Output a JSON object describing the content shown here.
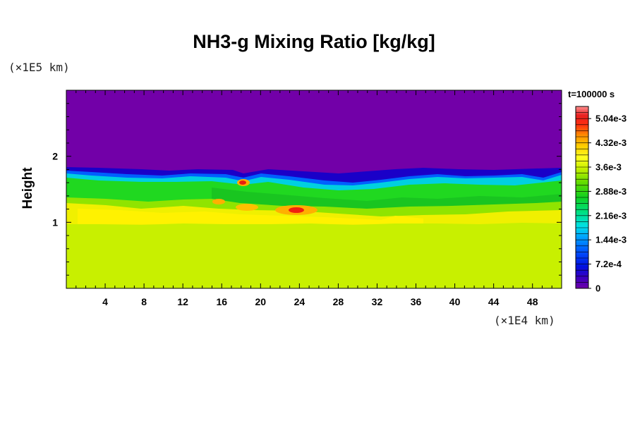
{
  "chart_data": {
    "type": "heatmap",
    "title": "NH3-g Mixing Ratio [kg/kg]",
    "ylabel": "Height",
    "y_unit_label": "(×1E5 km)",
    "x_unit_label": "(×1E4 km)",
    "time_label": "t=100000 s",
    "xlim": [
      0,
      51
    ],
    "ylim": [
      0,
      3
    ],
    "x_ticks": [
      "4",
      "8",
      "12",
      "16",
      "20",
      "24",
      "28",
      "32",
      "36",
      "40",
      "44",
      "48"
    ],
    "y_ticks": [
      "1",
      "2"
    ],
    "colorbar": {
      "min": 0,
      "max": 0.0054,
      "tick_labels": [
        "0",
        "7.2e-4",
        "1.44e-3",
        "2.16e-3",
        "2.88e-3",
        "3.6e-3",
        "4.32e-3",
        "5.04e-3"
      ],
      "tick_values": [
        0,
        0.00072,
        0.00144,
        0.00216,
        0.00288,
        0.0036,
        0.00432,
        0.00504
      ]
    },
    "layers": [
      {
        "region": "height > ~1.7",
        "value": 0
      },
      {
        "region": "cloud top transition ~1.6-1.8",
        "value": 0.0009
      },
      {
        "region": "height ~1.3-1.6",
        "value": 0.0026
      },
      {
        "region": "height ~1.0-1.3",
        "value": 0.0037
      },
      {
        "region": "height 0-1.0",
        "value": 0.0034
      }
    ],
    "maxima": [
      {
        "x": 23.5,
        "y": 1.17,
        "value": 0.0051
      },
      {
        "x": 18.2,
        "y": 1.6,
        "value": 0.005
      }
    ]
  }
}
